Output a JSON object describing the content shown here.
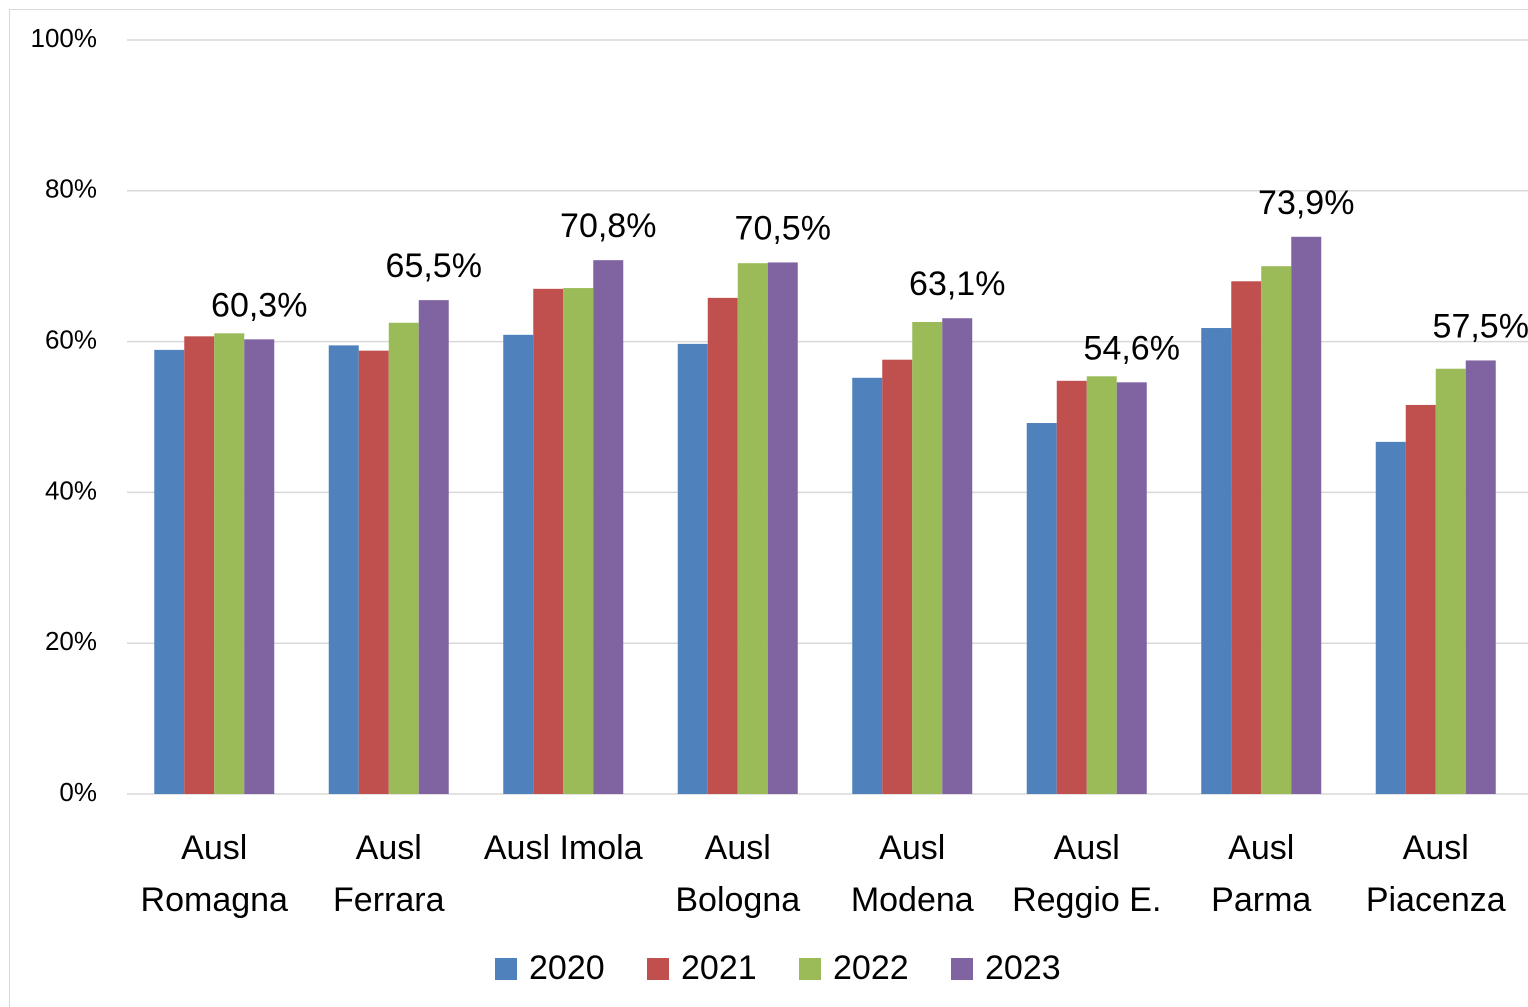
{
  "chart_data": {
    "type": "bar",
    "categories": [
      "Ausl Romagna",
      "Ausl Ferrara",
      "Ausl Imola",
      "Ausl Bologna",
      "Ausl Modena",
      "Ausl Reggio E.",
      "Ausl Parma",
      "Ausl Piacenza"
    ],
    "series": [
      {
        "name": "2020",
        "color": "#4f81bd",
        "values": [
          58.9,
          59.5,
          60.9,
          59.7,
          55.2,
          49.2,
          61.8,
          46.7
        ]
      },
      {
        "name": "2021",
        "color": "#c0504d",
        "values": [
          60.7,
          58.8,
          67.0,
          65.8,
          57.6,
          54.8,
          68.0,
          51.6
        ]
      },
      {
        "name": "2022",
        "color": "#9bbb59",
        "values": [
          61.1,
          62.5,
          67.1,
          70.4,
          62.6,
          55.4,
          70.0,
          56.4
        ]
      },
      {
        "name": "2023",
        "color": "#8064a2",
        "values": [
          60.3,
          65.5,
          70.8,
          70.5,
          63.1,
          54.6,
          73.9,
          57.5
        ],
        "value_labels": [
          "60,3%",
          "65,5%",
          "70,8%",
          "70,5%",
          "63,1%",
          "54,6%",
          "73,9%",
          "57,5%"
        ]
      }
    ],
    "ylim": [
      0,
      100
    ],
    "yticks": [
      {
        "value": 0,
        "label": "0%"
      },
      {
        "value": 20,
        "label": "20%"
      },
      {
        "value": 40,
        "label": "40%"
      },
      {
        "value": 60,
        "label": "60%"
      },
      {
        "value": 80,
        "label": "80%"
      },
      {
        "value": 100,
        "label": "100%"
      }
    ],
    "grid": true,
    "legend": "bottom"
  }
}
